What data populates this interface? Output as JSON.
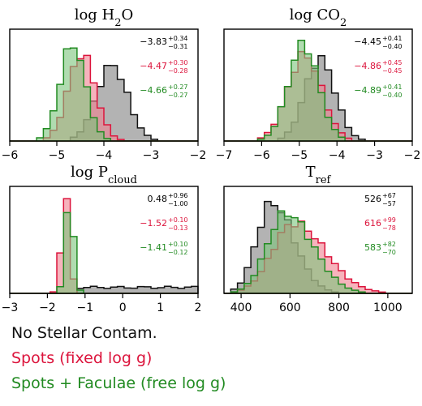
{
  "colors": {
    "none": "#111111",
    "spots": "#dc143c",
    "faculae": "#228b22",
    "none_fill": "#808080",
    "spots_fill": "#f08090",
    "faculae_fill": "#7cc47c"
  },
  "legend": [
    {
      "label": "No Stellar Contam.",
      "color": "#111111"
    },
    {
      "label": "Spots (fixed log g)",
      "color": "#dc143c"
    },
    {
      "label": "Spots + Faculae (free log g)",
      "color": "#228b22"
    }
  ],
  "chart_data": [
    {
      "type": "histogram",
      "title_base": "log H",
      "title_sub": "2",
      "title_tail": "O",
      "xlim": [
        -6,
        -2
      ],
      "xticks": [
        -6,
        -5,
        -4,
        -3,
        -2
      ],
      "tick_labels": [
        "−6",
        "−5",
        "−4",
        "−3",
        "−2"
      ],
      "series": [
        {
          "name": "No Stellar Contam.",
          "mu": -3.83,
          "sigma": 0.33,
          "amp": 0.72
        },
        {
          "name": "Spots (fixed log g)",
          "mu": -4.47,
          "sigma": 0.29,
          "amp": 0.83
        },
        {
          "name": "Spots + Faculae (free log g)",
          "mu": -4.66,
          "sigma": 0.27,
          "amp": 0.92
        }
      ],
      "annotations": [
        {
          "value": "−3.83",
          "plus": "+0.34",
          "minus": "−0.31"
        },
        {
          "value": "−4.47",
          "plus": "+0.30",
          "minus": "−0.28"
        },
        {
          "value": "−4.66",
          "plus": "+0.27",
          "minus": "−0.27"
        }
      ]
    },
    {
      "type": "histogram",
      "title_base": "log CO",
      "title_sub": "2",
      "title_tail": "",
      "xlim": [
        -7,
        -2
      ],
      "xticks": [
        -7,
        -6,
        -5,
        -4,
        -3,
        -2
      ],
      "tick_labels": [
        "−7",
        "−6",
        "−5",
        "−4",
        "−3",
        "−2"
      ],
      "series": [
        {
          "name": "No Stellar Contam.",
          "mu": -4.45,
          "sigma": 0.4,
          "amp": 0.78
        },
        {
          "name": "Spots (fixed log g)",
          "mu": -4.86,
          "sigma": 0.45,
          "amp": 0.82
        },
        {
          "name": "Spots + Faculae (free log g)",
          "mu": -4.89,
          "sigma": 0.4,
          "amp": 0.92
        }
      ],
      "annotations": [
        {
          "value": "−4.45",
          "plus": "+0.41",
          "minus": "−0.40"
        },
        {
          "value": "−4.86",
          "plus": "+0.45",
          "minus": "−0.45"
        },
        {
          "value": "−4.89",
          "plus": "+0.41",
          "minus": "−0.40"
        }
      ]
    },
    {
      "type": "histogram",
      "title_base": "log P",
      "title_sub": "cloud",
      "title_tail": "",
      "xlim": [
        -3,
        2
      ],
      "xticks": [
        -3,
        -2,
        -1,
        0,
        1,
        2
      ],
      "tick_labels": [
        "−3",
        "−2",
        "−1",
        "0",
        "1",
        "2"
      ],
      "series": [
        {
          "name": "No Stellar Contam.",
          "mu": 0.48,
          "sigma": 0.98,
          "amp": 0.07,
          "flat": true
        },
        {
          "name": "Spots (fixed log g)",
          "mu": -1.52,
          "sigma": 0.11,
          "amp": 0.97
        },
        {
          "name": "Spots + Faculae (free log g)",
          "mu": -1.41,
          "sigma": 0.11,
          "amp": 0.94
        }
      ],
      "annotations": [
        {
          "value": "0.48",
          "plus": "+0.96",
          "minus": "−1.00"
        },
        {
          "value": "−1.52",
          "plus": "+0.10",
          "minus": "−0.13"
        },
        {
          "value": "−1.41",
          "plus": "+0.10",
          "minus": "−0.12"
        }
      ]
    },
    {
      "type": "histogram",
      "title_base": "T",
      "title_sub": "ref",
      "title_tail": "",
      "xlim": [
        330,
        1100
      ],
      "xticks": [
        400,
        600,
        800,
        1000
      ],
      "tick_labels": [
        "400",
        "600",
        "800",
        "1000"
      ],
      "series": [
        {
          "name": "No Stellar Contam.",
          "mu": 526,
          "sigma": 62,
          "amp": 0.9,
          "skew": true
        },
        {
          "name": "Spots (fixed log g)",
          "mu": 616,
          "sigma": 88,
          "amp": 0.7,
          "skew": true
        },
        {
          "name": "Spots + Faculae (free log g)",
          "mu": 583,
          "sigma": 76,
          "amp": 0.8,
          "skew": true
        }
      ],
      "annotations": [
        {
          "value": "526",
          "plus": "+67",
          "minus": "−57"
        },
        {
          "value": "616",
          "plus": "+99",
          "minus": "−78"
        },
        {
          "value": "583",
          "plus": "+82",
          "minus": "−70"
        }
      ]
    }
  ]
}
